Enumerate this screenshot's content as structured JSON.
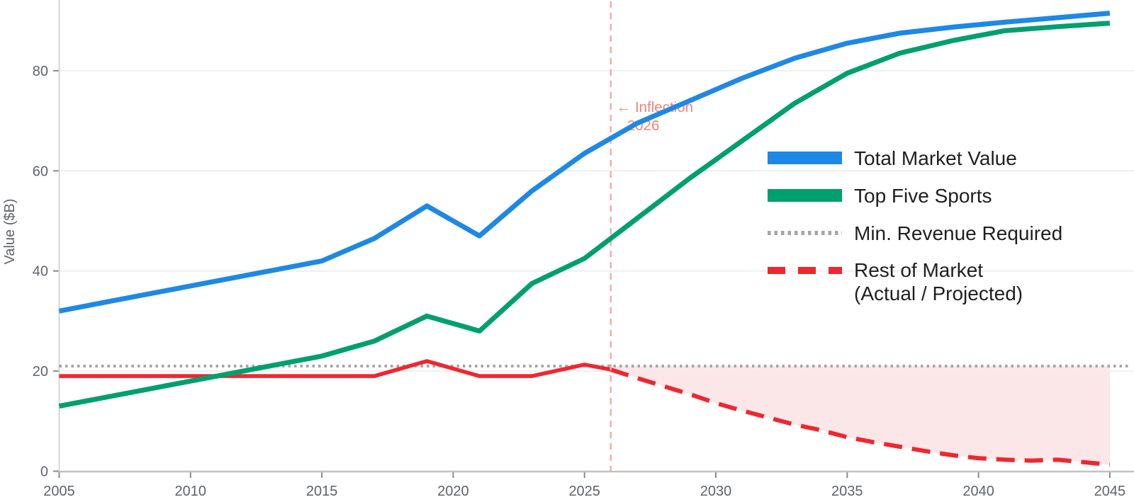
{
  "chart": {
    "y_axis_label": "Value ($B)",
    "palette": {
      "blue": "#1e88e5",
      "green": "#00a06e",
      "red": "#f0262f",
      "gray_dotted": "#a6a6a6",
      "pink_vline": "#f6aca8",
      "annotation_text": "#ef837c",
      "fill_pink": "#fbe7e8",
      "gridline": "#efefef",
      "axis_line": "#c2c2c2",
      "spine": "#d4d4d4",
      "tick_mark": "#8a8a8a",
      "tick_text": "#5f6368",
      "legend_text": "#1f1f1f"
    },
    "legend": [
      {
        "label": "Total Market Value",
        "style": "solid",
        "color": "#1e88e5"
      },
      {
        "label": "Top Five Sports",
        "style": "solid",
        "color": "#00a06e"
      },
      {
        "label": "Min. Revenue Required",
        "style": "dotted",
        "color": "#a6a6a6"
      },
      {
        "label": "Rest of Market",
        "label2": "(Actual / Projected)",
        "style": "dashed",
        "color": "#f0262f"
      }
    ]
  },
  "chart_data": {
    "type": "line",
    "title": "",
    "xlabel": "",
    "ylabel": "Value ($B)",
    "xlim": [
      2005,
      2045
    ],
    "ylim": [
      0,
      94
    ],
    "x_ticks": [
      2005,
      2010,
      2015,
      2020,
      2025,
      2030,
      2035,
      2040,
      2045
    ],
    "y_ticks": [
      0,
      20,
      40,
      60,
      80
    ],
    "grid": "horizontal",
    "legend_position": "center-right",
    "series": [
      {
        "name": "Total Market Value",
        "style": "solid",
        "color": "#1e88e5",
        "width": 7,
        "points": [
          [
            2005,
            32
          ],
          [
            2007,
            34
          ],
          [
            2009,
            36
          ],
          [
            2011,
            38
          ],
          [
            2013,
            40
          ],
          [
            2015,
            42
          ],
          [
            2017,
            46.5
          ],
          [
            2019,
            53
          ],
          [
            2021,
            47
          ],
          [
            2023,
            56
          ],
          [
            2025,
            63.5
          ],
          [
            2027,
            69.5
          ],
          [
            2029,
            74
          ],
          [
            2031,
            78.5
          ],
          [
            2033,
            82.5
          ],
          [
            2035,
            85.5
          ],
          [
            2037,
            87.5
          ],
          [
            2039,
            88.7
          ],
          [
            2041,
            89.7
          ],
          [
            2043,
            90.6
          ],
          [
            2045,
            91.5
          ]
        ]
      },
      {
        "name": "Top Five Sports",
        "style": "solid",
        "color": "#00a06e",
        "width": 7,
        "points": [
          [
            2005,
            13
          ],
          [
            2007,
            15
          ],
          [
            2009,
            17
          ],
          [
            2011,
            19
          ],
          [
            2013,
            21
          ],
          [
            2015,
            23
          ],
          [
            2017,
            26
          ],
          [
            2019,
            31
          ],
          [
            2021,
            28
          ],
          [
            2023,
            37.5
          ],
          [
            2025,
            42.5
          ],
          [
            2027,
            50.5
          ],
          [
            2029,
            58.5
          ],
          [
            2031,
            66
          ],
          [
            2033,
            73.5
          ],
          [
            2035,
            79.5
          ],
          [
            2037,
            83.5
          ],
          [
            2039,
            86
          ],
          [
            2041,
            88
          ],
          [
            2043,
            88.8
          ],
          [
            2045,
            89.5
          ]
        ]
      },
      {
        "name": "Min. Revenue Required",
        "style": "dotted",
        "color": "#a6a6a6",
        "width": 4,
        "points": [
          [
            2005,
            21
          ],
          [
            2045.7,
            21
          ]
        ]
      },
      {
        "name": "Rest of Market (Actual)",
        "style": "solid",
        "color": "#f0262f",
        "width": 5.5,
        "points": [
          [
            2005,
            19
          ],
          [
            2007,
            19
          ],
          [
            2009,
            19
          ],
          [
            2011,
            19
          ],
          [
            2013,
            19
          ],
          [
            2015,
            19
          ],
          [
            2017,
            19
          ],
          [
            2019,
            22
          ],
          [
            2021,
            19
          ],
          [
            2023,
            19
          ],
          [
            2025,
            21.3
          ],
          [
            2026,
            20.3
          ]
        ]
      },
      {
        "name": "Rest of Market (Projected)",
        "style": "dashed",
        "color": "#f0262f",
        "width": 6,
        "points": [
          [
            2026,
            20.3
          ],
          [
            2027,
            18.6
          ],
          [
            2028,
            17
          ],
          [
            2029,
            15.4
          ],
          [
            2030,
            13.6
          ],
          [
            2031,
            12.1
          ],
          [
            2032,
            10.7
          ],
          [
            2033,
            9.3
          ],
          [
            2034,
            8.2
          ],
          [
            2035,
            6.8
          ],
          [
            2036,
            5.8
          ],
          [
            2037,
            4.9
          ],
          [
            2038,
            4
          ],
          [
            2039,
            3.2
          ],
          [
            2040,
            2.6
          ],
          [
            2041,
            2.3
          ],
          [
            2042,
            2.1
          ],
          [
            2043,
            2.3
          ],
          [
            2044,
            1.8
          ],
          [
            2045,
            1.3
          ]
        ]
      }
    ],
    "shaded_region": {
      "description": "area between Min. Revenue Required (21) and Rest of Market (Projected)",
      "x_range": [
        2026,
        2045
      ],
      "top_value": 21,
      "color": "#fbe7e8"
    },
    "vline": {
      "x": 2026,
      "style": "dashed",
      "color": "#f6aca8"
    },
    "annotation": {
      "line1": "← Inflection",
      "line2": "2026",
      "x": 2026,
      "color": "#ef837c"
    }
  }
}
